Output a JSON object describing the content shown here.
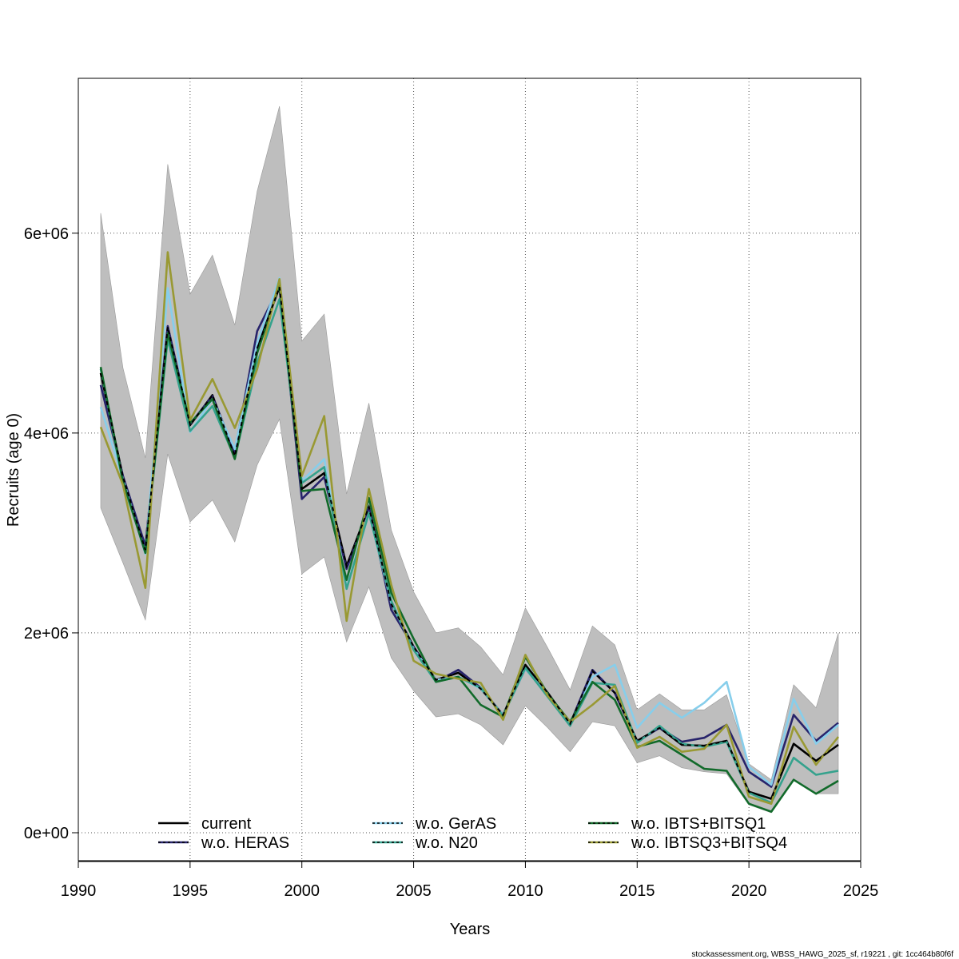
{
  "chart_data": {
    "type": "line",
    "title": "",
    "xlabel": "Years",
    "ylabel": "Recruits (age 0)",
    "xlim": [
      1990,
      2025
    ],
    "ylim": [
      -280000,
      7550000
    ],
    "x_ticks": [
      {
        "value": 1990,
        "label": "1990"
      },
      {
        "value": 1995,
        "label": "1995"
      },
      {
        "value": 2000,
        "label": "2000"
      },
      {
        "value": 2005,
        "label": "2005"
      },
      {
        "value": 2010,
        "label": "2010"
      },
      {
        "value": 2015,
        "label": "2015"
      },
      {
        "value": 2020,
        "label": "2020"
      },
      {
        "value": 2025,
        "label": "2025"
      }
    ],
    "y_ticks": [
      {
        "value": 0,
        "label": "0e+00"
      },
      {
        "value": 2000000,
        "label": "2e+06"
      },
      {
        "value": 4000000,
        "label": "4e+06"
      },
      {
        "value": 6000000,
        "label": "6e+06"
      }
    ],
    "grid": true,
    "legend_position": "bottom",
    "x": [
      1991,
      1992,
      1993,
      1994,
      1995,
      1996,
      1997,
      1998,
      1999,
      2000,
      2001,
      2002,
      2003,
      2004,
      2005,
      2006,
      2007,
      2008,
      2009,
      2010,
      2011,
      2012,
      2013,
      2014,
      2015,
      2016,
      2017,
      2018,
      2019,
      2020,
      2021,
      2022,
      2023,
      2024
    ],
    "band": {
      "color": "#bebebe",
      "lower": [
        3250000,
        2700000,
        2130000,
        3790000,
        3110000,
        3330000,
        2910000,
        3680000,
        4140000,
        2590000,
        2760000,
        1910000,
        2460000,
        1750000,
        1420000,
        1160000,
        1190000,
        1080000,
        880000,
        1270000,
        1050000,
        810000,
        1110000,
        1070000,
        700000,
        770000,
        650000,
        610000,
        590000,
        280000,
        200000,
        540000,
        390000,
        390000
      ],
      "upper": [
        6200000,
        4650000,
        3750000,
        6690000,
        5390000,
        5780000,
        5080000,
        6420000,
        7270000,
        4920000,
        5190000,
        3390000,
        4300000,
        3030000,
        2410000,
        2000000,
        2050000,
        1860000,
        1580000,
        2250000,
        1850000,
        1430000,
        2070000,
        1880000,
        1230000,
        1390000,
        1230000,
        1230000,
        1380000,
        690000,
        530000,
        1480000,
        1250000,
        2000000
      ]
    },
    "series": [
      {
        "name": "current",
        "color": "#000000",
        "dash": "",
        "values": [
          4600000,
          3560000,
          2830000,
          5060000,
          4080000,
          4380000,
          3770000,
          4850000,
          5460000,
          3440000,
          3600000,
          2670000,
          3260000,
          2290000,
          1860000,
          1530000,
          1600000,
          1440000,
          1180000,
          1680000,
          1400000,
          1090000,
          1620000,
          1400000,
          920000,
          1050000,
          880000,
          870000,
          920000,
          410000,
          340000,
          890000,
          720000,
          880000
        ]
      },
      {
        "name": "w.o. HERAS",
        "color": "#27236b",
        "dash": "",
        "values": [
          4480000,
          3570000,
          2870000,
          5070000,
          4090000,
          4370000,
          3810000,
          5020000,
          5470000,
          3340000,
          3560000,
          2640000,
          3260000,
          2230000,
          1860000,
          1510000,
          1630000,
          1450000,
          1180000,
          1640000,
          1380000,
          1090000,
          1630000,
          1400000,
          910000,
          1050000,
          910000,
          950000,
          1080000,
          610000,
          460000,
          1180000,
          920000,
          1100000
        ]
      },
      {
        "name": "w.o. GerAS",
        "color": "#87ceeb",
        "dash": "",
        "values": [
          4260000,
          3540000,
          2790000,
          5450000,
          4010000,
          4340000,
          3840000,
          4900000,
          5550000,
          3520000,
          3740000,
          2450000,
          3200000,
          2300000,
          1840000,
          1530000,
          1560000,
          1440000,
          1180000,
          1640000,
          1380000,
          1080000,
          1560000,
          1680000,
          1050000,
          1300000,
          1150000,
          1300000,
          1510000,
          660000,
          480000,
          1340000,
          890000,
          1080000
        ]
      },
      {
        "name": "w.o. N20",
        "color": "#35a28d",
        "dash": "",
        "values": [
          4640000,
          3500000,
          2810000,
          4940000,
          4020000,
          4270000,
          3750000,
          4700000,
          5340000,
          3500000,
          3660000,
          2440000,
          3200000,
          2320000,
          1830000,
          1510000,
          1560000,
          1450000,
          1170000,
          1650000,
          1360000,
          1070000,
          1500000,
          1480000,
          900000,
          1070000,
          890000,
          860000,
          910000,
          400000,
          300000,
          750000,
          580000,
          620000
        ]
      },
      {
        "name": "w.o. IBTS+BITSQ1",
        "color": "#116a2a",
        "dash": "",
        "values": [
          4660000,
          3520000,
          2800000,
          5000000,
          4100000,
          4340000,
          3740000,
          4800000,
          5480000,
          3420000,
          3440000,
          2530000,
          3350000,
          2400000,
          1940000,
          1510000,
          1560000,
          1280000,
          1160000,
          1760000,
          1390000,
          1110000,
          1510000,
          1330000,
          860000,
          920000,
          780000,
          640000,
          620000,
          290000,
          210000,
          530000,
          390000,
          520000
        ]
      },
      {
        "name": "w.o. IBTSQ3+BITSQ4",
        "color": "#999933",
        "dash": "",
        "values": [
          4060000,
          3480000,
          2450000,
          5810000,
          4130000,
          4540000,
          4050000,
          4640000,
          5540000,
          3570000,
          4170000,
          2120000,
          3440000,
          2480000,
          1720000,
          1590000,
          1540000,
          1500000,
          1130000,
          1780000,
          1370000,
          1110000,
          1280000,
          1470000,
          850000,
          960000,
          810000,
          840000,
          1080000,
          360000,
          290000,
          1060000,
          680000,
          960000
        ]
      }
    ],
    "footer": "stockassessment.org, WBSS_HAWG_2025_sf, r19221 , git: 1cc464b80f6f"
  }
}
